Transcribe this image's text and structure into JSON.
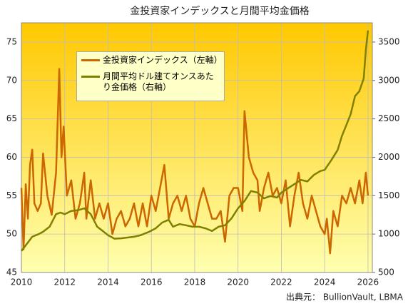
{
  "chart_data": {
    "type": "line",
    "title": "金投資家インデックスと月間平均金価格",
    "source": "出典元： BullionVault, LBMA",
    "xlim": [
      2010,
      2026.2
    ],
    "xticks": [
      2010,
      2012,
      2014,
      2016,
      2018,
      2020,
      2022,
      2024,
      2026
    ],
    "ylim": [
      45,
      77.5
    ],
    "yticks": [
      45,
      50,
      55,
      60,
      65,
      70,
      75
    ],
    "y2lim": [
      500,
      3750
    ],
    "y2ticks": [
      500,
      1000,
      1500,
      2000,
      2500,
      3000,
      3500
    ],
    "grid": true,
    "legend": "upper left",
    "series": [
      {
        "name": "金投資家インデックス（左軸）",
        "color": "#cc6600",
        "axis": "y",
        "x": [
          2010.0,
          2010.1,
          2010.2,
          2010.3,
          2010.4,
          2010.5,
          2010.6,
          2010.75,
          2010.9,
          2011.0,
          2011.2,
          2011.4,
          2011.6,
          2011.75,
          2011.85,
          2011.95,
          2012.1,
          2012.3,
          2012.5,
          2012.7,
          2012.9,
          2013.0,
          2013.2,
          2013.4,
          2013.6,
          2013.8,
          2014.0,
          2014.2,
          2014.4,
          2014.6,
          2014.8,
          2015.0,
          2015.2,
          2015.4,
          2015.6,
          2015.8,
          2016.0,
          2016.2,
          2016.4,
          2016.6,
          2016.8,
          2017.0,
          2017.2,
          2017.4,
          2017.6,
          2017.8,
          2018.0,
          2018.2,
          2018.4,
          2018.6,
          2018.8,
          2019.0,
          2019.2,
          2019.4,
          2019.6,
          2019.8,
          2020.0,
          2020.2,
          2020.3,
          2020.5,
          2020.7,
          2020.9,
          2021.0,
          2021.2,
          2021.4,
          2021.6,
          2021.8,
          2022.0,
          2022.2,
          2022.4,
          2022.6,
          2022.8,
          2023.0,
          2023.2,
          2023.4,
          2023.6,
          2023.8,
          2024.0,
          2024.1,
          2024.25,
          2024.4,
          2024.6,
          2024.8,
          2025.0,
          2025.2,
          2025.4,
          2025.6,
          2025.75,
          2025.9,
          2026.0
        ],
        "values": [
          56,
          48,
          56.5,
          52,
          59,
          61,
          54,
          53,
          54,
          60.5,
          55,
          52.5,
          58,
          71.5,
          60,
          64,
          55,
          57,
          52,
          54,
          58,
          52,
          57,
          52,
          54,
          52,
          54,
          50,
          52,
          53,
          51,
          52,
          54,
          51,
          54,
          51,
          55,
          53,
          56,
          59,
          52,
          54,
          55,
          53,
          55,
          52,
          51,
          54,
          56,
          54,
          52,
          52,
          53,
          49,
          55,
          56,
          56,
          53,
          66,
          60,
          58,
          57,
          53,
          56,
          58,
          55,
          56,
          54,
          57,
          51,
          55,
          58,
          54,
          52,
          55,
          53,
          51,
          50,
          52,
          47.5,
          53,
          51,
          55,
          54,
          56,
          54,
          57,
          54,
          58,
          55
        ]
      },
      {
        "name": "月間平均ドル建てオンスあたり金価格（右軸）",
        "color": "#808000",
        "axis": "y2",
        "x": [
          2010.0,
          2010.3,
          2010.5,
          2010.8,
          2011.0,
          2011.3,
          2011.6,
          2011.8,
          2012.0,
          2012.3,
          2012.6,
          2012.9,
          2013.2,
          2013.5,
          2013.8,
          2014.0,
          2014.3,
          2014.6,
          2014.9,
          2015.2,
          2015.5,
          2015.9,
          2016.2,
          2016.5,
          2016.8,
          2017.0,
          2017.3,
          2017.6,
          2017.9,
          2018.2,
          2018.5,
          2018.8,
          2019.1,
          2019.4,
          2019.7,
          2020.0,
          2020.3,
          2020.6,
          2020.9,
          2021.2,
          2021.5,
          2021.8,
          2022.0,
          2022.3,
          2022.6,
          2022.9,
          2023.2,
          2023.5,
          2023.8,
          2024.0,
          2024.3,
          2024.6,
          2024.8,
          2025.0,
          2025.2,
          2025.4,
          2025.6,
          2025.8,
          2025.9,
          2026.0
        ],
        "values": [
          780,
          890,
          965,
          1000,
          1030,
          1095,
          1260,
          1280,
          1260,
          1300,
          1310,
          1335,
          1260,
          1095,
          1030,
          985,
          940,
          945,
          955,
          965,
          985,
          1030,
          1075,
          1150,
          1185,
          1095,
          1130,
          1115,
          1095,
          1095,
          1075,
          1040,
          1095,
          1115,
          1205,
          1335,
          1430,
          1560,
          1540,
          1465,
          1495,
          1475,
          1540,
          1595,
          1650,
          1705,
          1685,
          1770,
          1820,
          1835,
          1960,
          2095,
          2280,
          2420,
          2560,
          2795,
          2860,
          3025,
          3395,
          3650
        ]
      }
    ]
  }
}
